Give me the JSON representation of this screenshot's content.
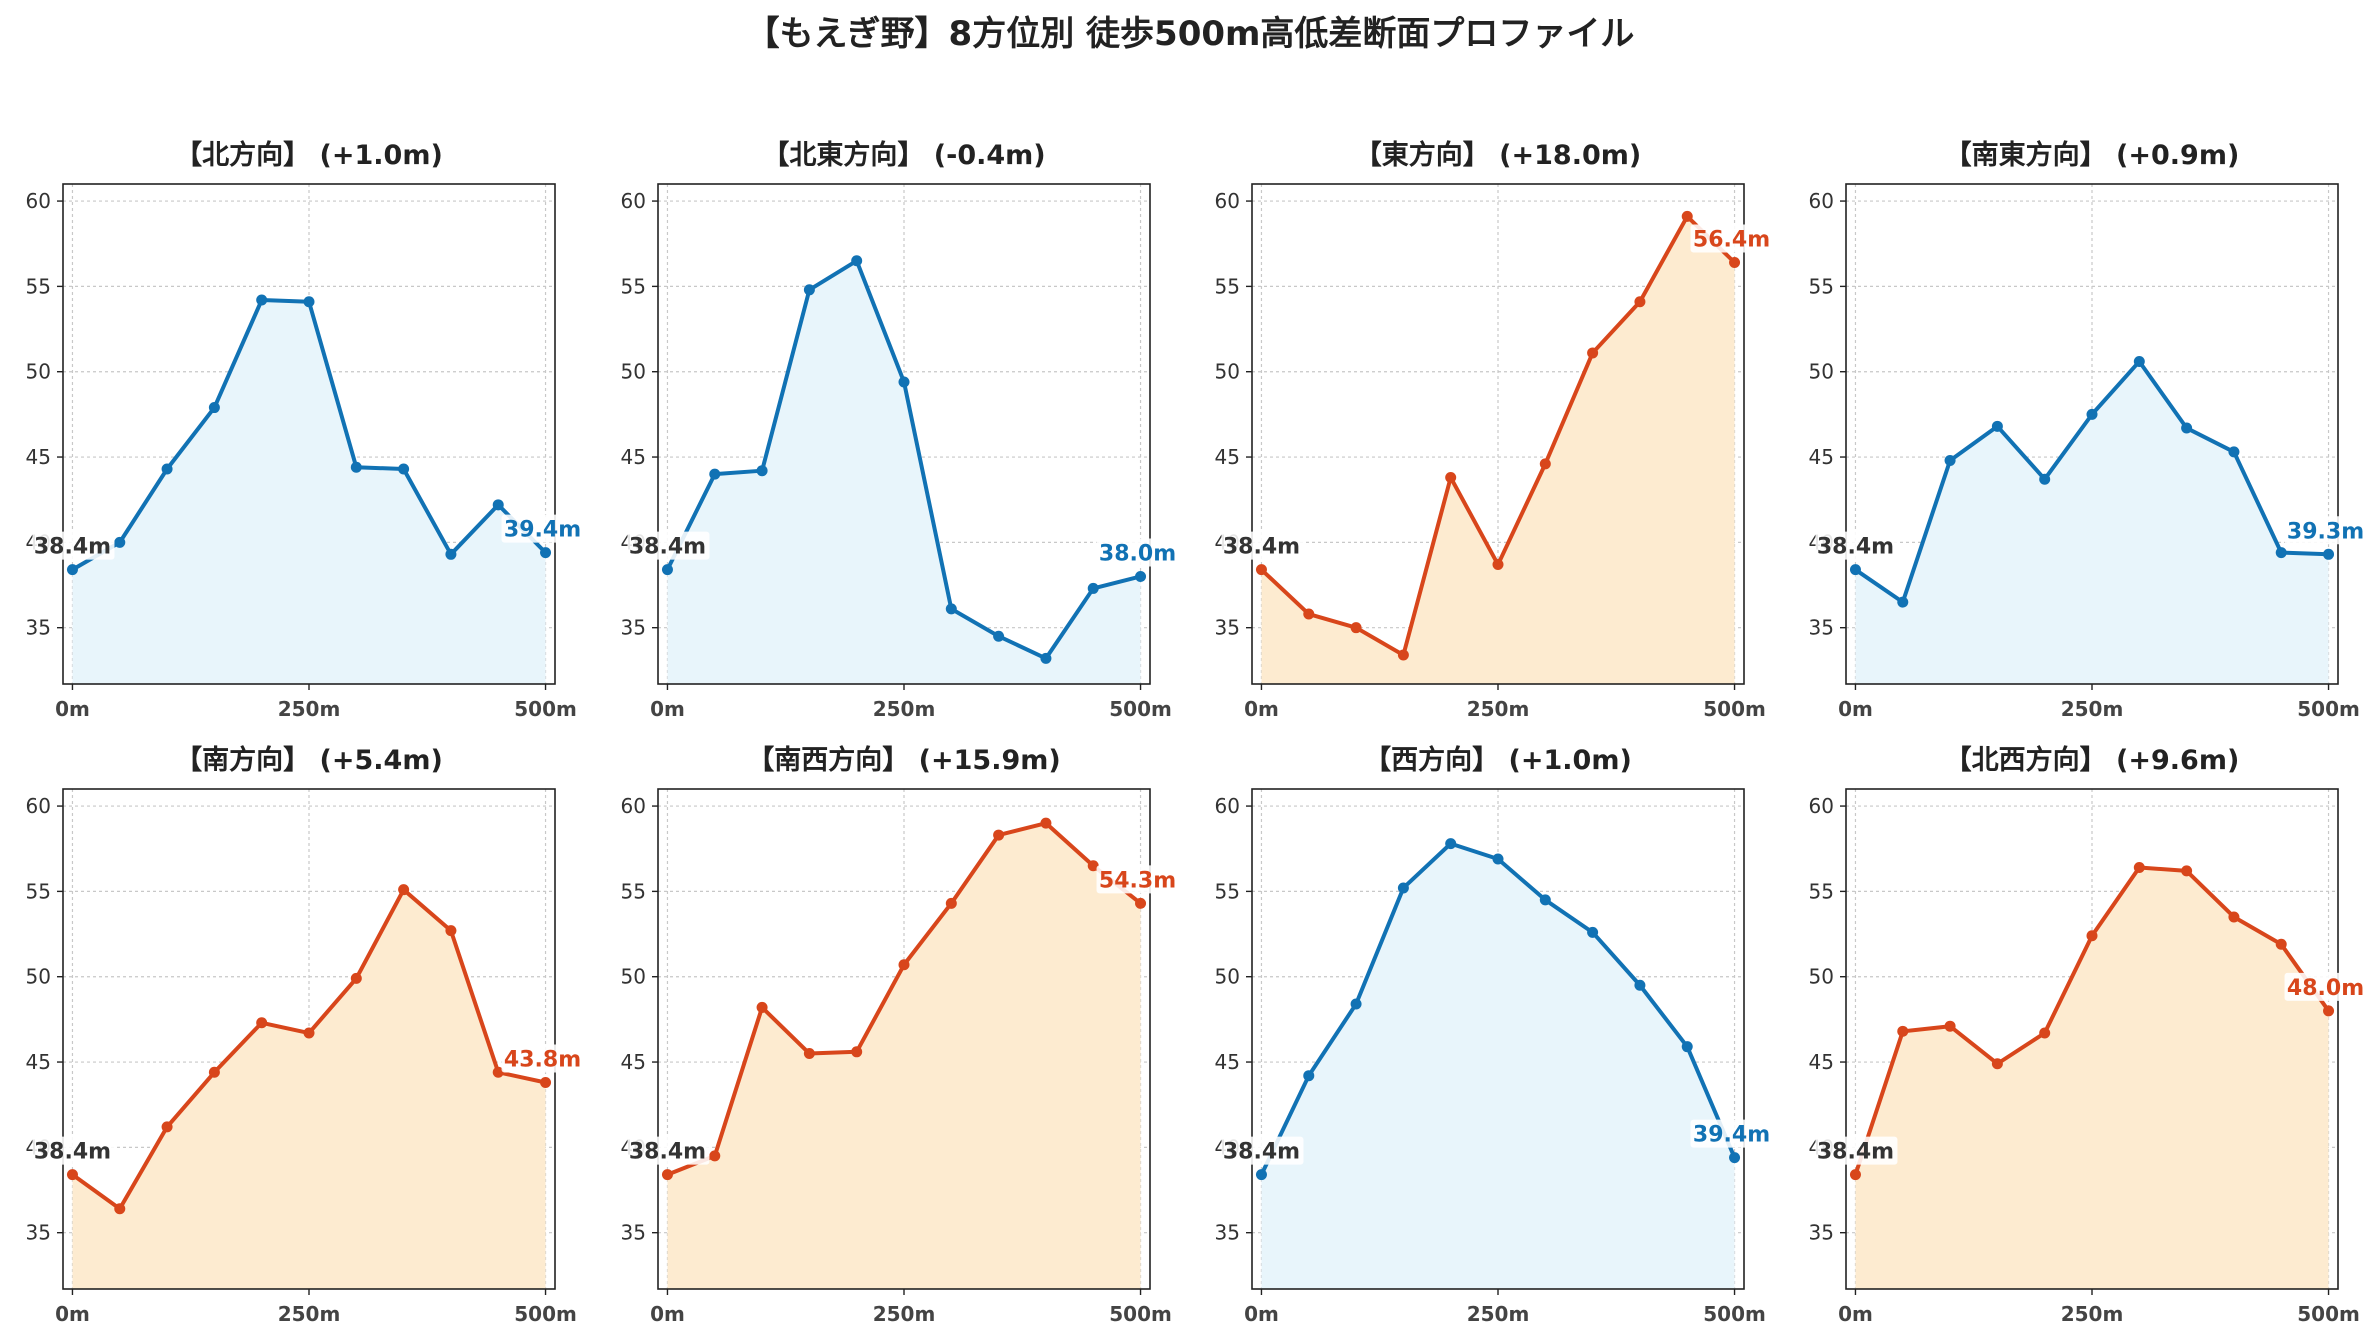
{
  "title": "【もえぎ野】8方位別 徒歩500m高低差断面プロファイル",
  "colors": {
    "up": "#d8461b",
    "up_fill": "#fdebd0",
    "down": "#1172b4",
    "down_fill": "#e8f5fb",
    "start_label": "#333333"
  },
  "chart_data": [
    {
      "type": "area",
      "title": "【北方向】 (+1.0m)",
      "trend": "down",
      "x": [
        0,
        50,
        100,
        150,
        200,
        250,
        300,
        350,
        400,
        450,
        500
      ],
      "values": [
        38.4,
        40.0,
        44.3,
        47.9,
        54.2,
        54.1,
        44.4,
        44.3,
        39.3,
        42.2,
        39.4
      ],
      "start_label": "38.4m",
      "end_label": "39.4m"
    },
    {
      "type": "area",
      "title": "【北東方向】 (-0.4m)",
      "trend": "down",
      "x": [
        0,
        50,
        100,
        150,
        200,
        250,
        300,
        350,
        400,
        450,
        500
      ],
      "values": [
        38.4,
        44.0,
        44.2,
        54.8,
        56.5,
        49.4,
        36.1,
        34.5,
        33.2,
        37.3,
        38.0
      ],
      "start_label": "38.4m",
      "end_label": "38.0m"
    },
    {
      "type": "area",
      "title": "【東方向】 (+18.0m)",
      "trend": "up",
      "x": [
        0,
        50,
        100,
        150,
        200,
        250,
        300,
        350,
        400,
        450,
        500
      ],
      "values": [
        38.4,
        35.8,
        35.0,
        33.4,
        43.8,
        38.7,
        44.6,
        51.1,
        54.1,
        59.1,
        56.4
      ],
      "start_label": "38.4m",
      "end_label": "56.4m"
    },
    {
      "type": "area",
      "title": "【南東方向】 (+0.9m)",
      "trend": "down",
      "x": [
        0,
        50,
        100,
        150,
        200,
        250,
        300,
        350,
        400,
        450,
        500
      ],
      "values": [
        38.4,
        36.5,
        44.8,
        46.8,
        43.7,
        47.5,
        50.6,
        46.7,
        45.3,
        39.4,
        39.3
      ],
      "start_label": "38.4m",
      "end_label": "39.3m"
    },
    {
      "type": "area",
      "title": "【南方向】 (+5.4m)",
      "trend": "up",
      "x": [
        0,
        50,
        100,
        150,
        200,
        250,
        300,
        350,
        400,
        450,
        500
      ],
      "values": [
        38.4,
        36.4,
        41.2,
        44.4,
        47.3,
        46.7,
        49.9,
        55.1,
        52.7,
        44.4,
        43.8
      ],
      "start_label": "38.4m",
      "end_label": "43.8m"
    },
    {
      "type": "area",
      "title": "【南西方向】 (+15.9m)",
      "trend": "up",
      "x": [
        0,
        50,
        100,
        150,
        200,
        250,
        300,
        350,
        400,
        450,
        500
      ],
      "values": [
        38.4,
        39.5,
        48.2,
        45.5,
        45.6,
        50.7,
        54.3,
        58.3,
        59.0,
        56.5,
        54.3
      ],
      "start_label": "38.4m",
      "end_label": "54.3m"
    },
    {
      "type": "area",
      "title": "【西方向】 (+1.0m)",
      "trend": "down",
      "x": [
        0,
        50,
        100,
        150,
        200,
        250,
        300,
        350,
        400,
        450,
        500
      ],
      "values": [
        38.4,
        44.2,
        48.4,
        55.2,
        57.8,
        56.9,
        54.5,
        52.6,
        49.5,
        45.9,
        39.4
      ],
      "start_label": "38.4m",
      "end_label": "39.4m"
    },
    {
      "type": "area",
      "title": "【北西方向】 (+9.6m)",
      "trend": "up",
      "x": [
        0,
        50,
        100,
        150,
        200,
        250,
        300,
        350,
        400,
        450,
        500
      ],
      "values": [
        38.4,
        46.8,
        47.1,
        44.9,
        46.7,
        52.4,
        56.4,
        56.2,
        53.5,
        51.9,
        48.0
      ],
      "start_label": "38.4m",
      "end_label": "48.0m"
    }
  ],
  "axes": {
    "ylim": [
      31.7,
      61.0
    ],
    "xlim": [
      -10,
      510
    ],
    "yticks": [
      35,
      40,
      45,
      50,
      55,
      60
    ],
    "ytick_labels": [
      "35",
      "40",
      "45",
      "50",
      "55",
      "60"
    ],
    "xticks": [
      0,
      250,
      500
    ],
    "xtick_labels": [
      "0m",
      "250m",
      "500m"
    ],
    "grid": true
  }
}
